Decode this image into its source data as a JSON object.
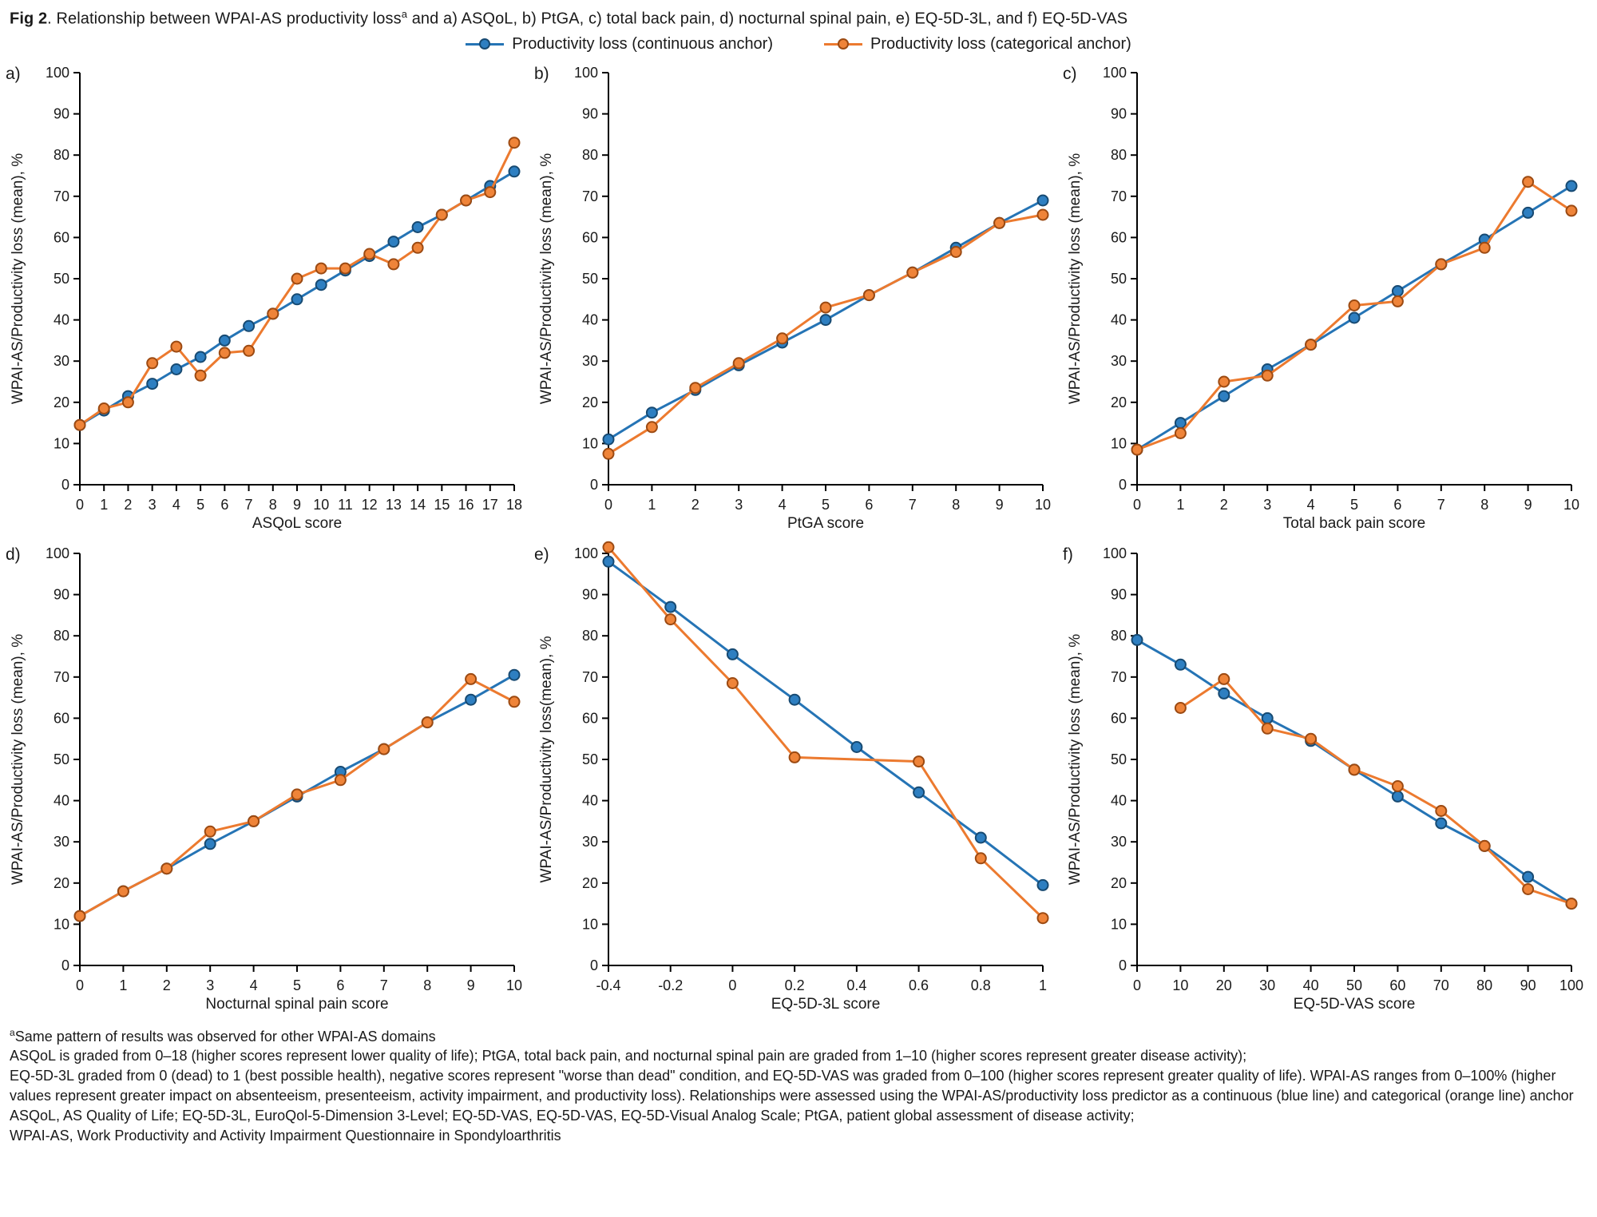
{
  "title": {
    "fig": "Fig 2",
    "pre": ". Relationship between WPAI-AS productivity loss",
    "sup": "a",
    "post": " and a) ASQoL, b) PtGA, c) total back pain, d) nocturnal spinal pain, e) EQ-5D-3L, and f) EQ-5D-VAS"
  },
  "legend": {
    "items": [
      {
        "key": "continuous",
        "label": "Productivity loss (continuous anchor)"
      },
      {
        "key": "categorical",
        "label": "Productivity loss (categorical anchor)"
      }
    ]
  },
  "colors": {
    "continuous": {
      "line": "#2574b5",
      "fill": "#2e7fc1",
      "edge": "#174a72"
    },
    "categorical": {
      "line": "#ec7a2f",
      "fill": "#ef8439",
      "edge": "#9c4a12"
    }
  },
  "chart_data": [
    {
      "type": "line",
      "panel_label": "a)",
      "xlabel": "ASQoL score",
      "ylabel": "WPAI-AS/Productivity loss (mean), %",
      "xlim": [
        0,
        18
      ],
      "ylim": [
        0,
        100
      ],
      "xticks": [
        0,
        1,
        2,
        3,
        4,
        5,
        6,
        7,
        8,
        9,
        10,
        11,
        12,
        13,
        14,
        15,
        16,
        17,
        18
      ],
      "yticks": [
        0,
        10,
        20,
        30,
        40,
        50,
        60,
        70,
        80,
        90,
        100
      ],
      "series": [
        {
          "key": "continuous",
          "name": "Productivity loss (continuous anchor)",
          "x": [
            0,
            1,
            2,
            3,
            4,
            5,
            6,
            7,
            8,
            9,
            10,
            11,
            12,
            13,
            14,
            15,
            16,
            17,
            18
          ],
          "y": [
            14.5,
            18,
            21.5,
            24.5,
            28,
            31,
            35,
            38.5,
            41.5,
            45,
            48.5,
            52,
            55.5,
            59,
            62.5,
            65.5,
            69,
            72.5,
            76
          ]
        },
        {
          "key": "categorical",
          "name": "Productivity loss (categorical anchor)",
          "x": [
            0,
            1,
            2,
            3,
            4,
            5,
            6,
            7,
            8,
            9,
            10,
            11,
            12,
            13,
            14,
            15,
            16,
            17,
            18
          ],
          "y": [
            14.5,
            18.5,
            20,
            29.5,
            33.5,
            26.5,
            32,
            32.5,
            41.5,
            50,
            52.5,
            52.5,
            56,
            53.5,
            57.5,
            65.5,
            69,
            71,
            83
          ]
        }
      ]
    },
    {
      "type": "line",
      "panel_label": "b)",
      "xlabel": "PtGA score",
      "ylabel": "WPAI-AS/Productivity loss (mean), %",
      "xlim": [
        0,
        10
      ],
      "ylim": [
        0,
        100
      ],
      "xticks": [
        0,
        1,
        2,
        3,
        4,
        5,
        6,
        7,
        8,
        9,
        10
      ],
      "yticks": [
        0,
        10,
        20,
        30,
        40,
        50,
        60,
        70,
        80,
        90,
        100
      ],
      "series": [
        {
          "key": "continuous",
          "name": "Productivity loss (continuous anchor)",
          "x": [
            0,
            1,
            2,
            3,
            4,
            5,
            6,
            7,
            8,
            9,
            10
          ],
          "y": [
            11,
            17.5,
            23,
            29,
            34.5,
            40,
            46,
            51.5,
            57.5,
            63.5,
            69
          ]
        },
        {
          "key": "categorical",
          "name": "Productivity loss (categorical anchor)",
          "x": [
            0,
            1,
            2,
            3,
            4,
            5,
            6,
            7,
            8,
            9,
            10
          ],
          "y": [
            7.5,
            14,
            23.5,
            29.5,
            35.5,
            43,
            46,
            51.5,
            56.5,
            63.5,
            65.5
          ]
        }
      ]
    },
    {
      "type": "line",
      "panel_label": "c)",
      "xlabel": "Total back pain score",
      "ylabel": "WPAI-AS/Productivity loss (mean), %",
      "xlim": [
        0,
        10
      ],
      "ylim": [
        0,
        100
      ],
      "xticks": [
        0,
        1,
        2,
        3,
        4,
        5,
        6,
        7,
        8,
        9,
        10
      ],
      "yticks": [
        0,
        10,
        20,
        30,
        40,
        50,
        60,
        70,
        80,
        90,
        100
      ],
      "series": [
        {
          "key": "continuous",
          "name": "Productivity loss (continuous anchor)",
          "x": [
            0,
            1,
            2,
            3,
            4,
            5,
            6,
            7,
            8,
            9,
            10
          ],
          "y": [
            8.5,
            15,
            21.5,
            28,
            34,
            40.5,
            47,
            53.5,
            59.5,
            66,
            72.5
          ]
        },
        {
          "key": "categorical",
          "name": "Productivity loss (categorical anchor)",
          "x": [
            0,
            1,
            2,
            3,
            4,
            5,
            6,
            7,
            8,
            9,
            10
          ],
          "y": [
            8.5,
            12.5,
            25,
            26.5,
            34,
            43.5,
            44.5,
            53.5,
            57.5,
            73.5,
            66.5
          ]
        }
      ]
    },
    {
      "type": "line",
      "panel_label": "d)",
      "xlabel": "Nocturnal spinal pain score",
      "ylabel": "WPAI-AS/Productivity loss (mean), %",
      "xlim": [
        0,
        10
      ],
      "ylim": [
        0,
        100
      ],
      "xticks": [
        0,
        1,
        2,
        3,
        4,
        5,
        6,
        7,
        8,
        9,
        10
      ],
      "yticks": [
        0,
        10,
        20,
        30,
        40,
        50,
        60,
        70,
        80,
        90,
        100
      ],
      "series": [
        {
          "key": "continuous",
          "name": "Productivity loss (continuous anchor)",
          "x": [
            0,
            1,
            2,
            3,
            4,
            5,
            6,
            7,
            8,
            9,
            10
          ],
          "y": [
            12,
            18,
            23.5,
            29.5,
            35,
            41,
            47,
            52.5,
            59,
            64.5,
            70.5
          ]
        },
        {
          "key": "categorical",
          "name": "Productivity loss (categorical anchor)",
          "x": [
            0,
            1,
            2,
            3,
            4,
            5,
            6,
            7,
            8,
            9,
            10
          ],
          "y": [
            12,
            18,
            23.5,
            32.5,
            35,
            41.5,
            45,
            52.5,
            59,
            69.5,
            64
          ]
        }
      ]
    },
    {
      "type": "line",
      "panel_label": "e)",
      "xlabel": "EQ-5D-3L score",
      "ylabel": "WPAI-AS/Productivity loss(mean), %",
      "xlim": [
        -0.4,
        1
      ],
      "ylim": [
        0,
        100
      ],
      "xticks": [
        -0.4,
        -0.2,
        0,
        0.2,
        0.4,
        0.6,
        0.8,
        1
      ],
      "yticks": [
        0,
        10,
        20,
        30,
        40,
        50,
        60,
        70,
        80,
        90,
        100
      ],
      "series": [
        {
          "key": "continuous",
          "name": "Productivity loss (continuous anchor)",
          "x": [
            -0.4,
            -0.2,
            0,
            0.2,
            0.4,
            0.6,
            0.8,
            1
          ],
          "y": [
            98,
            87,
            75.5,
            64.5,
            53,
            42,
            31,
            19.5
          ]
        },
        {
          "key": "categorical",
          "name": "Productivity loss (categorical anchor)",
          "x": [
            -0.4,
            -0.2,
            0,
            0.2,
            0.6,
            0.8,
            1
          ],
          "y": [
            101.5,
            84,
            68.5,
            50.5,
            49.5,
            26,
            11.5
          ]
        }
      ]
    },
    {
      "type": "line",
      "panel_label": "f)",
      "xlabel": "EQ-5D-VAS score",
      "ylabel": "WPAI-AS/Productivity loss (mean), %",
      "xlim": [
        0,
        100
      ],
      "ylim": [
        0,
        100
      ],
      "xticks": [
        0,
        10,
        20,
        30,
        40,
        50,
        60,
        70,
        80,
        90,
        100
      ],
      "yticks": [
        0,
        10,
        20,
        30,
        40,
        50,
        60,
        70,
        80,
        90,
        100
      ],
      "series": [
        {
          "key": "continuous",
          "name": "Productivity loss (continuous anchor)",
          "x": [
            0,
            10,
            20,
            30,
            40,
            50,
            60,
            70,
            80,
            90,
            100
          ],
          "y": [
            79,
            73,
            66,
            60,
            54.5,
            47.5,
            41,
            34.5,
            29,
            21.5,
            15
          ]
        },
        {
          "key": "categorical",
          "name": "Productivity loss (categorical anchor)",
          "x": [
            10,
            20,
            30,
            40,
            50,
            60,
            70,
            80,
            90,
            100
          ],
          "y": [
            62.5,
            69.5,
            57.5,
            55,
            47.5,
            43.5,
            37.5,
            29,
            18.5,
            15
          ]
        }
      ]
    }
  ],
  "footnotes": {
    "sup": "a",
    "lines": [
      "Same pattern of results was observed for other WPAI-AS domains",
      "ASQoL is graded from 0–18 (higher scores represent lower quality of life); PtGA, total back pain, and nocturnal spinal pain are graded from 1–10 (higher scores represent greater disease activity);",
      "EQ-5D-3L graded from 0 (dead) to 1 (best possible health), negative scores represent \"worse than dead\" condition, and EQ-5D-VAS was graded from 0–100 (higher scores represent greater quality of life). WPAI-AS ranges from 0–100% (higher values represent greater impact on absenteeism, presenteeism, activity impairment, and productivity loss). Relationships were assessed using the WPAI-AS/productivity loss predictor as a continuous (blue line) and categorical (orange line) anchor",
      "ASQoL, AS Quality of Life; EQ-5D-3L, EuroQol-5-Dimension 3-Level; EQ-5D-VAS, EQ-5D-VAS, EQ-5D-Visual Analog Scale; PtGA, patient global assessment of disease activity;",
      "WPAI-AS, Work Productivity and Activity Impairment Questionnaire in Spondyloarthritis"
    ]
  }
}
